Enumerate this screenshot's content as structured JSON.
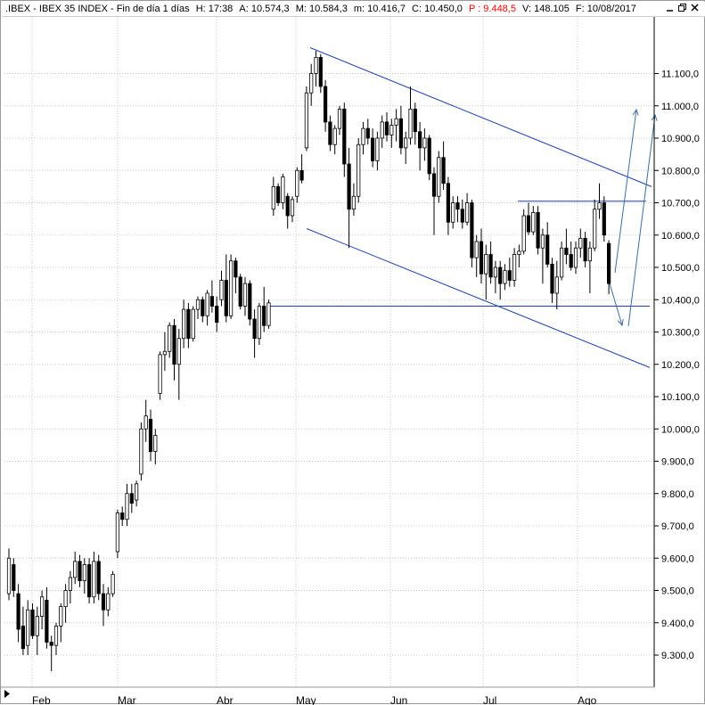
{
  "header": {
    "symbol": ".IBEX - IBEX 35 INDEX - Fin de día 1 días",
    "hour": "H: 17:38",
    "open": "A: 10.574,3",
    "high": "M: 10.584,3",
    "low": "m: 10.416,7",
    "close": "C: 10.450,0",
    "p": "P : 9.448,5",
    "volume": "V: 148.105",
    "date": "F: 10/08/2017",
    "accent_color": "#ff0000"
  },
  "window_buttons": {
    "minimize_icon": "minimize-icon",
    "restore_icon": "restore-icon",
    "close_icon": "close-icon"
  },
  "colors": {
    "grid": "#c8c8c8",
    "candle_up": "#ffffff",
    "candle_down": "#000000",
    "trendline": "#1f3fb8",
    "projection": "#3a6fa8"
  },
  "chart_data": {
    "type": "candlestick",
    "title": "",
    "xlabel": "",
    "ylabel": "",
    "ylim": [
      9200,
      11200
    ],
    "y_ticks": [
      9300,
      9400,
      9500,
      9600,
      9700,
      9800,
      9900,
      10000,
      10100,
      10200,
      10300,
      10400,
      10500,
      10600,
      10700,
      10800,
      10900,
      11000,
      11100
    ],
    "y_tick_labels": [
      "9.300,0",
      "9.400,0",
      "9.500,0",
      "9.600,0",
      "9.700,0",
      "9.800,0",
      "9.900,0",
      "10.000,0",
      "10.100,0",
      "10.200,0",
      "10.300,0",
      "10.400,0",
      "10.500,0",
      "10.600,0",
      "10.700,0",
      "10.800,0",
      "10.900,0",
      "11.000,0",
      "11.100,0"
    ],
    "x_month_labels": [
      "Feb",
      "Mar",
      "Abr",
      "May",
      "Jun",
      "Jul",
      "Ago"
    ],
    "grid": true,
    "legend": "none",
    "ohlc": [
      {
        "o": 9490,
        "h": 9630,
        "l": 9470,
        "c": 9600
      },
      {
        "o": 9580,
        "h": 9600,
        "l": 9480,
        "c": 9500
      },
      {
        "o": 9490,
        "h": 9520,
        "l": 9340,
        "c": 9380
      },
      {
        "o": 9390,
        "h": 9450,
        "l": 9300,
        "c": 9320
      },
      {
        "o": 9330,
        "h": 9470,
        "l": 9300,
        "c": 9440
      },
      {
        "o": 9440,
        "h": 9460,
        "l": 9350,
        "c": 9360
      },
      {
        "o": 9360,
        "h": 9450,
        "l": 9300,
        "c": 9420
      },
      {
        "o": 9420,
        "h": 9500,
        "l": 9380,
        "c": 9480
      },
      {
        "o": 9470,
        "h": 9510,
        "l": 9320,
        "c": 9340
      },
      {
        "o": 9340,
        "h": 9360,
        "l": 9250,
        "c": 9330
      },
      {
        "o": 9330,
        "h": 9400,
        "l": 9300,
        "c": 9390
      },
      {
        "o": 9390,
        "h": 9460,
        "l": 9340,
        "c": 9450
      },
      {
        "o": 9450,
        "h": 9520,
        "l": 9400,
        "c": 9500
      },
      {
        "o": 9500,
        "h": 9560,
        "l": 9460,
        "c": 9540
      },
      {
        "o": 9540,
        "h": 9620,
        "l": 9520,
        "c": 9590
      },
      {
        "o": 9590,
        "h": 9610,
        "l": 9510,
        "c": 9530
      },
      {
        "o": 9530,
        "h": 9600,
        "l": 9490,
        "c": 9580
      },
      {
        "o": 9580,
        "h": 9600,
        "l": 9460,
        "c": 9480
      },
      {
        "o": 9480,
        "h": 9620,
        "l": 9460,
        "c": 9590
      },
      {
        "o": 9590,
        "h": 9610,
        "l": 9470,
        "c": 9490
      },
      {
        "o": 9490,
        "h": 9520,
        "l": 9390,
        "c": 9440
      },
      {
        "o": 9440,
        "h": 9510,
        "l": 9420,
        "c": 9490
      },
      {
        "o": 9490,
        "h": 9560,
        "l": 9480,
        "c": 9550
      },
      {
        "o": 9620,
        "h": 9750,
        "l": 9600,
        "c": 9740
      },
      {
        "o": 9740,
        "h": 9760,
        "l": 9700,
        "c": 9720
      },
      {
        "o": 9720,
        "h": 9830,
        "l": 9700,
        "c": 9800
      },
      {
        "o": 9800,
        "h": 9830,
        "l": 9740,
        "c": 9770
      },
      {
        "o": 9780,
        "h": 9840,
        "l": 9760,
        "c": 9830
      },
      {
        "o": 9860,
        "h": 10020,
        "l": 9840,
        "c": 10000
      },
      {
        "o": 10000,
        "h": 10090,
        "l": 9960,
        "c": 10040
      },
      {
        "o": 10030,
        "h": 10060,
        "l": 9900,
        "c": 9930
      },
      {
        "o": 9930,
        "h": 10000,
        "l": 9890,
        "c": 9980
      },
      {
        "o": 10110,
        "h": 10240,
        "l": 10090,
        "c": 10230
      },
      {
        "o": 10230,
        "h": 10300,
        "l": 10180,
        "c": 10240
      },
      {
        "o": 10240,
        "h": 10330,
        "l": 10220,
        "c": 10320
      },
      {
        "o": 10320,
        "h": 10340,
        "l": 10150,
        "c": 10200
      },
      {
        "o": 10200,
        "h": 10310,
        "l": 10090,
        "c": 10280
      },
      {
        "o": 10280,
        "h": 10400,
        "l": 10250,
        "c": 10370
      },
      {
        "o": 10370,
        "h": 10390,
        "l": 10250,
        "c": 10280
      },
      {
        "o": 10280,
        "h": 10380,
        "l": 10270,
        "c": 10370
      },
      {
        "o": 10370,
        "h": 10410,
        "l": 10340,
        "c": 10400
      },
      {
        "o": 10400,
        "h": 10410,
        "l": 10330,
        "c": 10350
      },
      {
        "o": 10350,
        "h": 10430,
        "l": 10320,
        "c": 10420
      },
      {
        "o": 10410,
        "h": 10460,
        "l": 10360,
        "c": 10380
      },
      {
        "o": 10380,
        "h": 10410,
        "l": 10300,
        "c": 10330
      },
      {
        "o": 10400,
        "h": 10490,
        "l": 10380,
        "c": 10460
      },
      {
        "o": 10460,
        "h": 10540,
        "l": 10330,
        "c": 10350
      },
      {
        "o": 10350,
        "h": 10540,
        "l": 10340,
        "c": 10520
      },
      {
        "o": 10520,
        "h": 10530,
        "l": 10420,
        "c": 10470
      },
      {
        "o": 10470,
        "h": 10480,
        "l": 10370,
        "c": 10380
      },
      {
        "o": 10380,
        "h": 10470,
        "l": 10350,
        "c": 10450
      },
      {
        "o": 10450,
        "h": 10460,
        "l": 10320,
        "c": 10340
      },
      {
        "o": 10340,
        "h": 10370,
        "l": 10220,
        "c": 10280
      },
      {
        "o": 10280,
        "h": 10390,
        "l": 10260,
        "c": 10380
      },
      {
        "o": 10380,
        "h": 10440,
        "l": 10300,
        "c": 10320
      },
      {
        "o": 10320,
        "h": 10400,
        "l": 10310,
        "c": 10390
      },
      {
        "o": 10680,
        "h": 10780,
        "l": 10660,
        "c": 10750
      },
      {
        "o": 10750,
        "h": 10760,
        "l": 10690,
        "c": 10700
      },
      {
        "o": 10700,
        "h": 10790,
        "l": 10680,
        "c": 10780
      },
      {
        "o": 10720,
        "h": 10730,
        "l": 10620,
        "c": 10660
      },
      {
        "o": 10660,
        "h": 10720,
        "l": 10640,
        "c": 10710
      },
      {
        "o": 10720,
        "h": 10810,
        "l": 10700,
        "c": 10800
      },
      {
        "o": 10800,
        "h": 10850,
        "l": 10760,
        "c": 10770
      },
      {
        "o": 10870,
        "h": 11060,
        "l": 10860,
        "c": 11040
      },
      {
        "o": 11040,
        "h": 11130,
        "l": 11000,
        "c": 11100
      },
      {
        "o": 11100,
        "h": 11170,
        "l": 11060,
        "c": 11150
      },
      {
        "o": 11150,
        "h": 11160,
        "l": 11040,
        "c": 11060
      },
      {
        "o": 11060,
        "h": 11080,
        "l": 10920,
        "c": 10950
      },
      {
        "o": 10950,
        "h": 10970,
        "l": 10860,
        "c": 10880
      },
      {
        "o": 10880,
        "h": 10940,
        "l": 10850,
        "c": 10930
      },
      {
        "o": 10930,
        "h": 11000,
        "l": 10910,
        "c": 10990
      },
      {
        "o": 10990,
        "h": 11010,
        "l": 10780,
        "c": 10820
      },
      {
        "o": 10820,
        "h": 10870,
        "l": 10560,
        "c": 10680
      },
      {
        "o": 10680,
        "h": 10760,
        "l": 10660,
        "c": 10720
      },
      {
        "o": 10720,
        "h": 10900,
        "l": 10700,
        "c": 10880
      },
      {
        "o": 10880,
        "h": 10950,
        "l": 10850,
        "c": 10930
      },
      {
        "o": 10930,
        "h": 10960,
        "l": 10880,
        "c": 10900
      },
      {
        "o": 10900,
        "h": 10930,
        "l": 10810,
        "c": 10830
      },
      {
        "o": 10830,
        "h": 10920,
        "l": 10800,
        "c": 10900
      },
      {
        "o": 10900,
        "h": 10970,
        "l": 10870,
        "c": 10950
      },
      {
        "o": 10950,
        "h": 10980,
        "l": 10890,
        "c": 10910
      },
      {
        "o": 10910,
        "h": 10960,
        "l": 10870,
        "c": 10940
      },
      {
        "o": 10940,
        "h": 10990,
        "l": 10890,
        "c": 10960
      },
      {
        "o": 10960,
        "h": 11000,
        "l": 10850,
        "c": 10870
      },
      {
        "o": 10870,
        "h": 10920,
        "l": 10820,
        "c": 10900
      },
      {
        "o": 10900,
        "h": 11060,
        "l": 10880,
        "c": 10990
      },
      {
        "o": 10990,
        "h": 11010,
        "l": 10880,
        "c": 10920
      },
      {
        "o": 10920,
        "h": 10950,
        "l": 10800,
        "c": 10870
      },
      {
        "o": 10870,
        "h": 10930,
        "l": 10830,
        "c": 10900
      },
      {
        "o": 10900,
        "h": 10910,
        "l": 10770,
        "c": 10790
      },
      {
        "o": 10790,
        "h": 10810,
        "l": 10600,
        "c": 10720
      },
      {
        "o": 10720,
        "h": 10860,
        "l": 10700,
        "c": 10840
      },
      {
        "o": 10840,
        "h": 10890,
        "l": 10740,
        "c": 10760
      },
      {
        "o": 10760,
        "h": 10780,
        "l": 10600,
        "c": 10640
      },
      {
        "o": 10640,
        "h": 10720,
        "l": 10620,
        "c": 10700
      },
      {
        "o": 10700,
        "h": 10720,
        "l": 10640,
        "c": 10680
      },
      {
        "o": 10680,
        "h": 10710,
        "l": 10620,
        "c": 10640
      },
      {
        "o": 10640,
        "h": 10730,
        "l": 10630,
        "c": 10700
      },
      {
        "o": 10700,
        "h": 10710,
        "l": 10500,
        "c": 10530
      },
      {
        "o": 10530,
        "h": 10600,
        "l": 10470,
        "c": 10580
      },
      {
        "o": 10580,
        "h": 10620,
        "l": 10450,
        "c": 10480
      },
      {
        "o": 10480,
        "h": 10570,
        "l": 10400,
        "c": 10540
      },
      {
        "o": 10540,
        "h": 10580,
        "l": 10450,
        "c": 10470
      },
      {
        "o": 10470,
        "h": 10520,
        "l": 10420,
        "c": 10500
      },
      {
        "o": 10500,
        "h": 10520,
        "l": 10400,
        "c": 10450
      },
      {
        "o": 10450,
        "h": 10510,
        "l": 10430,
        "c": 10490
      },
      {
        "o": 10490,
        "h": 10530,
        "l": 10440,
        "c": 10460
      },
      {
        "o": 10460,
        "h": 10560,
        "l": 10440,
        "c": 10540
      },
      {
        "o": 10540,
        "h": 10570,
        "l": 10500,
        "c": 10550
      },
      {
        "o": 10550,
        "h": 10680,
        "l": 10540,
        "c": 10660
      },
      {
        "o": 10660,
        "h": 10700,
        "l": 10600,
        "c": 10610
      },
      {
        "o": 10610,
        "h": 10690,
        "l": 10600,
        "c": 10670
      },
      {
        "o": 10670,
        "h": 10690,
        "l": 10540,
        "c": 10560
      },
      {
        "o": 10560,
        "h": 10620,
        "l": 10450,
        "c": 10600
      },
      {
        "o": 10600,
        "h": 10640,
        "l": 10500,
        "c": 10510
      },
      {
        "o": 10510,
        "h": 10530,
        "l": 10390,
        "c": 10420
      },
      {
        "o": 10420,
        "h": 10520,
        "l": 10370,
        "c": 10470
      },
      {
        "o": 10470,
        "h": 10580,
        "l": 10460,
        "c": 10560
      },
      {
        "o": 10560,
        "h": 10620,
        "l": 10510,
        "c": 10540
      },
      {
        "o": 10540,
        "h": 10580,
        "l": 10490,
        "c": 10500
      },
      {
        "o": 10500,
        "h": 10580,
        "l": 10480,
        "c": 10560
      },
      {
        "o": 10560,
        "h": 10620,
        "l": 10530,
        "c": 10590
      },
      {
        "o": 10590,
        "h": 10610,
        "l": 10500,
        "c": 10520
      },
      {
        "o": 10520,
        "h": 10580,
        "l": 10420,
        "c": 10560
      },
      {
        "o": 10560,
        "h": 10710,
        "l": 10550,
        "c": 10680
      },
      {
        "o": 10680,
        "h": 10760,
        "l": 10650,
        "c": 10700
      },
      {
        "o": 10700,
        "h": 10720,
        "l": 10580,
        "c": 10600
      },
      {
        "o": 10574,
        "h": 10584,
        "l": 10417,
        "c": 10450
      }
    ]
  },
  "annotations": {
    "resistance_upper_line": {
      "start": 11180,
      "end": 10750
    },
    "support_lower_line": {
      "start": 10620,
      "end": 10190
    },
    "horizontal_support": 10380,
    "horizontal_resistance": 10705
  },
  "scrollbar": {
    "left_arrow_icon": "scroll-left-icon"
  }
}
